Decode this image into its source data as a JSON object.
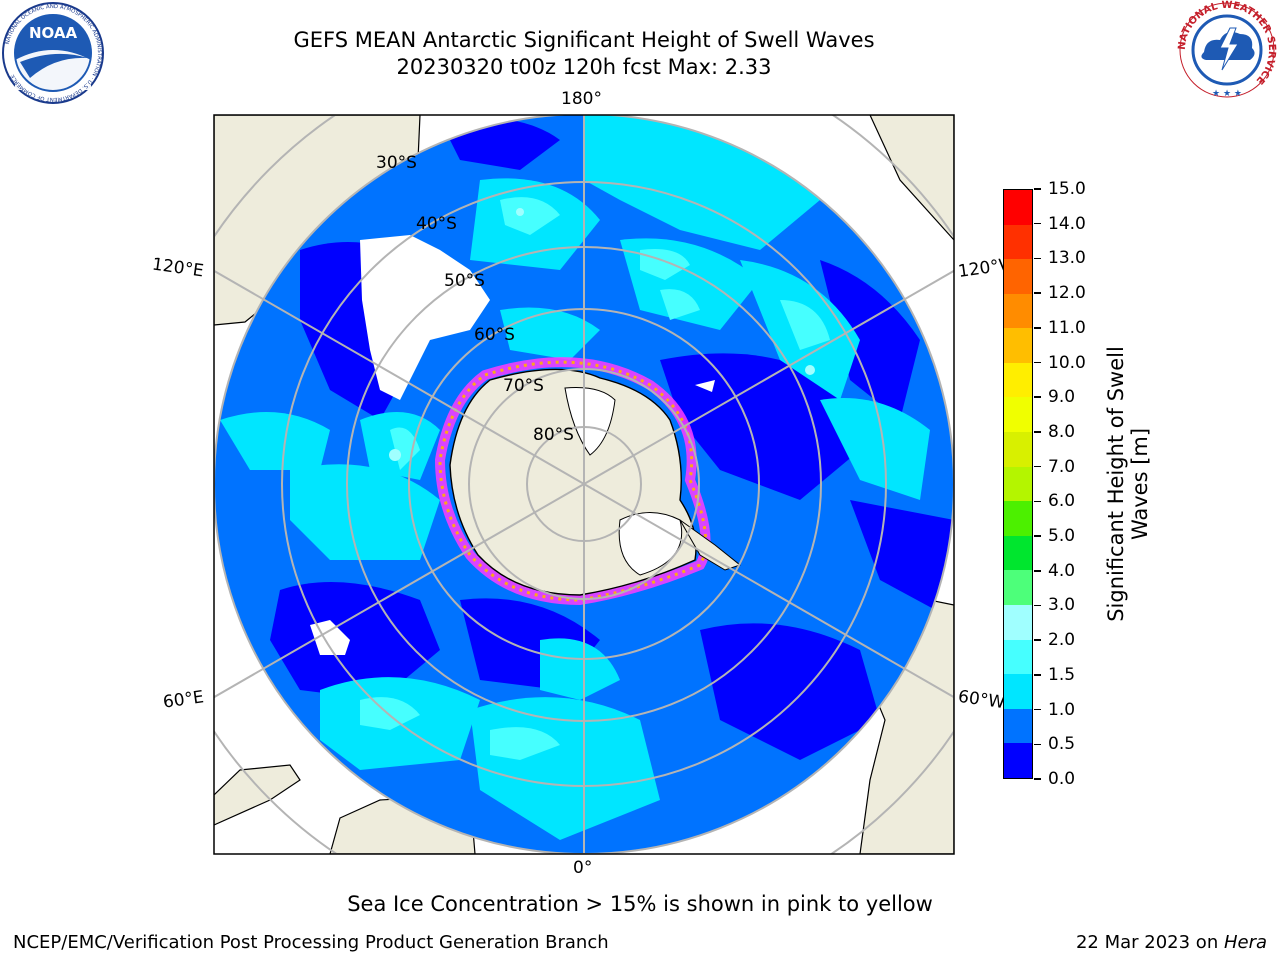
{
  "header": {
    "title_line1": "GEFS MEAN Antarctic Significant Height of Swell Waves",
    "title_line2": "20230320 t00z 120h fcst   Max: 2.33"
  },
  "logos": {
    "noaa_text": "NOAA",
    "noaa_ring_text": "NATIONAL OCEANIC AND ATMOSPHERIC ADMINISTRATION · U.S. DEPARTMENT OF COMMERCE",
    "nws_ring_text": "NATIONAL WEATHER SERVICE"
  },
  "map": {
    "projection": "south-polar-stereographic",
    "longitude_labels": {
      "top": "180°",
      "bottom": "0°",
      "left_upper": "120°E",
      "left_lower": "60°E",
      "right_upper": "120°W",
      "right_lower": "60°W"
    },
    "latitude_labels": [
      "30°S",
      "40°S",
      "50°S",
      "60°S",
      "70°S",
      "80°S"
    ],
    "colors": {
      "land": "#eeecdc",
      "grid": "#b4b4b4",
      "coast": "#000000",
      "background_ocean": "#0066ff"
    }
  },
  "colorbar": {
    "label_line1": "Significant Height of Swell",
    "label_line2": "Waves [m]",
    "ticks": [
      "0.0",
      "0.5",
      "1.0",
      "1.5",
      "2.0",
      "3.0",
      "4.0",
      "5.0",
      "6.0",
      "7.0",
      "8.0",
      "9.0",
      "10.0",
      "11.0",
      "12.0",
      "13.0",
      "14.0",
      "15.0"
    ],
    "bins": [
      {
        "value": "0.0-0.5",
        "color": "#0000ff"
      },
      {
        "value": "0.5-1.0",
        "color": "#0073ff"
      },
      {
        "value": "1.0-1.5",
        "color": "#00e6ff"
      },
      {
        "value": "1.5-2.0",
        "color": "#46ffff"
      },
      {
        "value": "2.0-3.0",
        "color": "#a0ffff"
      },
      {
        "value": "3.0-4.0",
        "color": "#4dff7a"
      },
      {
        "value": "4.0-5.0",
        "color": "#00e62e"
      },
      {
        "value": "5.0-6.0",
        "color": "#4cf000"
      },
      {
        "value": "6.0-7.0",
        "color": "#b4f500"
      },
      {
        "value": "7.0-8.0",
        "color": "#d8f000"
      },
      {
        "value": "8.0-9.0",
        "color": "#f0ff00"
      },
      {
        "value": "9.0-10.0",
        "color": "#ffee00"
      },
      {
        "value": "10.0-11.0",
        "color": "#ffbe00"
      },
      {
        "value": "11.0-12.0",
        "color": "#ff8c00"
      },
      {
        "value": "12.0-13.0",
        "color": "#ff6400"
      },
      {
        "value": "13.0-14.0",
        "color": "#ff3000"
      },
      {
        "value": "14.0-15.0",
        "color": "#ff0000"
      }
    ]
  },
  "notes": {
    "sea_ice": "Sea Ice Concentration > 15% is shown in pink to yellow"
  },
  "footer": {
    "left": "NCEP/EMC/Verification Post Processing Product Generation Branch",
    "right_date": "22 Mar 2023 on ",
    "right_machine": "Hera"
  }
}
